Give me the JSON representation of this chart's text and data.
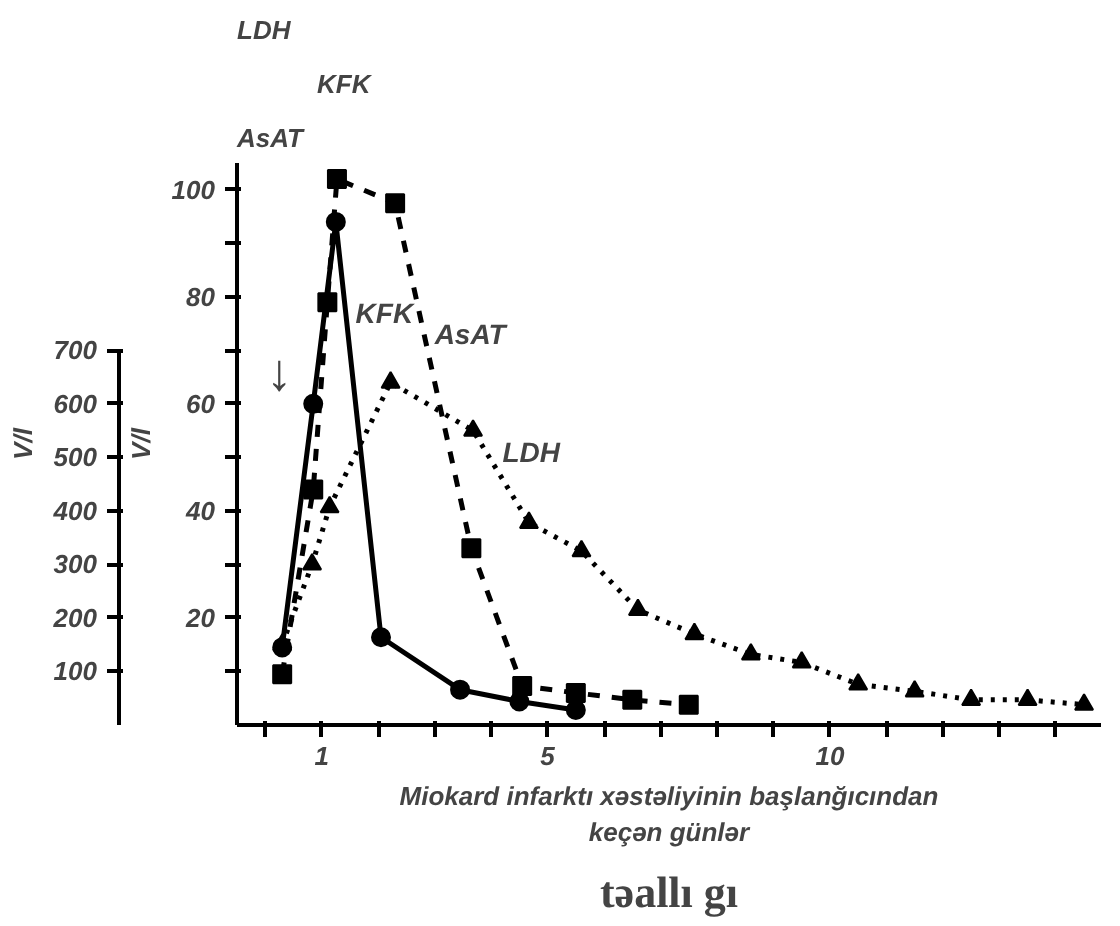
{
  "chart_data": {
    "type": "line",
    "xlabel": "Miokard infarktı xəstəliyinin başlanğıcından\nkeçən günlər",
    "ylabel": "V/l",
    "y2label": "V/l",
    "xlim": [
      -0.5,
      14.8
    ],
    "xticks": [
      {
        "value": 0,
        "label": null
      },
      {
        "value": 1,
        "label": "1"
      },
      {
        "value": 2,
        "label": null
      },
      {
        "value": 3,
        "label": null
      },
      {
        "value": 4,
        "label": null
      },
      {
        "value": 5,
        "label": "5"
      },
      {
        "value": 6,
        "label": null
      },
      {
        "value": 7,
        "label": null
      },
      {
        "value": 8,
        "label": null
      },
      {
        "value": 9,
        "label": null
      },
      {
        "value": 10,
        "label": "10"
      },
      {
        "value": 11,
        "label": null
      },
      {
        "value": 12,
        "label": null
      },
      {
        "value": 13,
        "label": null
      },
      {
        "value": 14,
        "label": null
      }
    ],
    "ylim": [
      0,
      105
    ],
    "yticks": [
      {
        "value": 10,
        "label": null
      },
      20,
      {
        "value": 30,
        "label": null
      },
      40,
      {
        "value": 50,
        "label": null
      },
      60,
      {
        "value": 70,
        "label": null
      },
      80,
      {
        "value": 90,
        "label": null
      },
      100
    ],
    "y2lim": [
      0,
      1050
    ],
    "y2ticks": [
      100,
      200,
      300,
      400,
      500,
      600,
      700
    ],
    "grid": false,
    "series": [
      {
        "name": "KFK",
        "color": "#000000",
        "marker": "circle",
        "line_style": "solid",
        "x": [
          0.3,
          0.85,
          1.25,
          2.05,
          3.45,
          4.5,
          5.5
        ],
        "values": [
          14.5,
          60,
          94,
          16.4,
          6.6,
          4.4,
          2.8
        ]
      },
      {
        "name": "AsAT",
        "color": "#000000",
        "marker": "square",
        "line_style": "dashed",
        "x": [
          0.3,
          0.85,
          1.1,
          1.27,
          2.3,
          3.65,
          4.55,
          5.5,
          6.5,
          7.5
        ],
        "values": [
          9.5,
          44,
          79,
          102,
          97.5,
          33,
          7.3,
          6,
          4.7,
          3.8
        ]
      },
      {
        "name": "LDH",
        "color": "#000000",
        "marker": "triangle",
        "line_style": "dotted",
        "axis": "y2",
        "x": [
          0.3,
          0.83,
          1.14,
          2.22,
          3.68,
          4.67,
          5.6,
          6.6,
          7.6,
          8.6,
          9.5,
          10.5,
          11.5,
          12.5,
          13.5,
          14.5
        ],
        "values": [
          150,
          300,
          407,
          640,
          550,
          378,
          325,
          215,
          170,
          132,
          117,
          76,
          63,
          47,
          47,
          38
        ]
      }
    ],
    "annotations": [
      "AsAT",
      "KFK",
      "LDH",
      "↓",
      "təallı gı"
    ]
  }
}
